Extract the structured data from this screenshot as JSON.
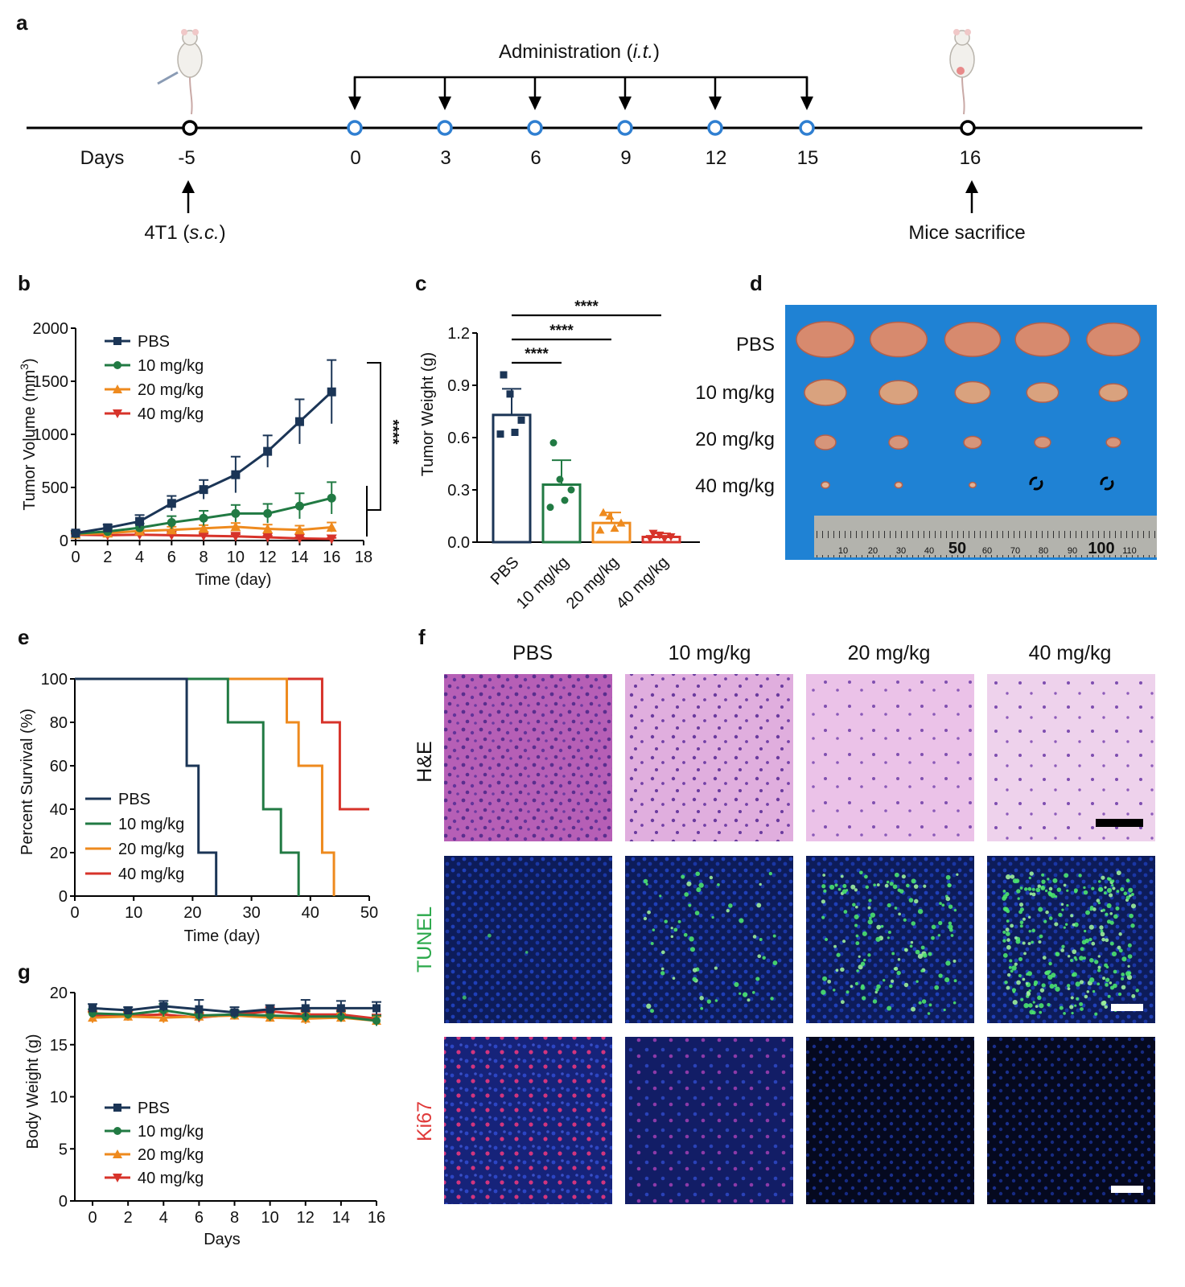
{
  "colors": {
    "PBS": "#1b3556",
    "10 mg/kg": "#217a43",
    "20 mg/kg": "#ee8a1e",
    "40 mg/kg": "#d7332a",
    "tunel": "#2aa84a",
    "ki67": "#e03a3a"
  },
  "panels": {
    "a": "a",
    "b": "b",
    "c": "c",
    "d": "d",
    "e": "e",
    "f": "f",
    "g": "g"
  },
  "timeline": {
    "days_label": "Days",
    "administration_label": "Administration (",
    "administration_italic": "i.t.",
    "administration_close": ")",
    "start_day": "-5",
    "admin_days": [
      "0",
      "3",
      "6",
      "9",
      "12",
      "15"
    ],
    "end_day": "16",
    "inoculation_label": "4T1 (",
    "inoculation_italic": "s.c.",
    "inoculation_close": ")",
    "sacrifice_label": "Mice sacrifice"
  },
  "photo": {
    "rows": [
      "PBS",
      "10 mg/kg",
      "20 mg/kg",
      "40 mg/kg"
    ],
    "ruler_labels": [
      "10",
      "20",
      "30",
      "40",
      "50",
      "60",
      "70",
      "80",
      "90",
      "100",
      "110"
    ]
  },
  "histology": {
    "columns": [
      "PBS",
      "10 mg/kg",
      "20 mg/kg",
      "40 mg/kg"
    ],
    "rows": [
      "H&E",
      "TUNEL",
      "Ki67"
    ]
  },
  "chart_data": [
    {
      "id": "b",
      "type": "line",
      "xlabel": "Time (day)",
      "ylabel": "Tumor Volume (mm",
      "ylabel_sup": "3",
      "ylabel_close": ")",
      "xlim": [
        0,
        18
      ],
      "ylim": [
        0,
        2000
      ],
      "xticks": [
        0,
        2,
        4,
        6,
        8,
        10,
        12,
        14,
        16,
        18
      ],
      "yticks": [
        0,
        500,
        1000,
        1500,
        2000
      ],
      "x": [
        0,
        2,
        4,
        6,
        8,
        10,
        12,
        14,
        16
      ],
      "series": [
        {
          "name": "PBS",
          "marker": "square",
          "values": [
            70,
            120,
            180,
            350,
            480,
            620,
            840,
            1120,
            1400
          ],
          "err": [
            20,
            30,
            60,
            70,
            90,
            170,
            150,
            210,
            300
          ]
        },
        {
          "name": "10 mg/kg",
          "marker": "circle",
          "values": [
            65,
            85,
            120,
            170,
            210,
            255,
            255,
            325,
            400
          ],
          "err": [
            15,
            25,
            40,
            60,
            70,
            80,
            90,
            120,
            150
          ]
        },
        {
          "name": "20 mg/kg",
          "marker": "triangle-up",
          "values": [
            60,
            70,
            90,
            100,
            115,
            130,
            110,
            100,
            125
          ],
          "err": [
            15,
            20,
            25,
            30,
            30,
            35,
            40,
            40,
            45
          ]
        },
        {
          "name": "40 mg/kg",
          "marker": "triangle-down",
          "values": [
            55,
            50,
            55,
            50,
            45,
            40,
            30,
            20,
            15
          ],
          "err": [
            10,
            15,
            15,
            20,
            20,
            20,
            15,
            10,
            10
          ]
        }
      ],
      "significance": "****",
      "legend": "top-left"
    },
    {
      "id": "c",
      "type": "bar",
      "ylabel": "Tumor Weight (g)",
      "ylim": [
        0,
        1.2
      ],
      "yticks": [
        "0.0",
        "0.3",
        "0.6",
        "0.9",
        "1.2"
      ],
      "categories": [
        "PBS",
        "10 mg/kg",
        "20 mg/kg",
        "40 mg/kg"
      ],
      "values": [
        0.73,
        0.33,
        0.11,
        0.03
      ],
      "err": [
        0.15,
        0.14,
        0.06,
        0.02
      ],
      "points": [
        [
          0.96,
          0.85,
          0.7,
          0.63,
          0.62
        ],
        [
          0.57,
          0.36,
          0.3,
          0.24,
          0.2
        ],
        [
          0.17,
          0.15,
          0.11,
          0.08,
          0.07
        ],
        [
          0.05,
          0.04,
          0.03,
          0.02,
          0.02
        ]
      ],
      "comparisons": [
        {
          "from": 0,
          "to": 1,
          "label": "****"
        },
        {
          "from": 0,
          "to": 2,
          "label": "****"
        },
        {
          "from": 0,
          "to": 3,
          "label": "****"
        }
      ]
    },
    {
      "id": "e",
      "type": "line",
      "xlabel": "Time (day)",
      "ylabel": "Percent Survival (%)",
      "xlim": [
        0,
        50
      ],
      "ylim": [
        0,
        100
      ],
      "xticks": [
        0,
        10,
        20,
        30,
        40,
        50
      ],
      "yticks": [
        0,
        20,
        40,
        60,
        80,
        100
      ],
      "series": [
        {
          "name": "PBS",
          "steps": [
            [
              0,
              100
            ],
            [
              19,
              100
            ],
            [
              19,
              60
            ],
            [
              21,
              60
            ],
            [
              21,
              20
            ],
            [
              24,
              20
            ],
            [
              24,
              0
            ]
          ]
        },
        {
          "name": "10 mg/kg",
          "steps": [
            [
              0,
              100
            ],
            [
              26,
              100
            ],
            [
              26,
              80
            ],
            [
              32,
              80
            ],
            [
              32,
              40
            ],
            [
              35,
              40
            ],
            [
              35,
              20
            ],
            [
              38,
              20
            ],
            [
              38,
              0
            ]
          ]
        },
        {
          "name": "20 mg/kg",
          "steps": [
            [
              0,
              100
            ],
            [
              36,
              100
            ],
            [
              36,
              80
            ],
            [
              38,
              80
            ],
            [
              38,
              60
            ],
            [
              42,
              60
            ],
            [
              42,
              20
            ],
            [
              44,
              20
            ],
            [
              44,
              0
            ]
          ]
        },
        {
          "name": "40 mg/kg",
          "steps": [
            [
              0,
              100
            ],
            [
              42,
              100
            ],
            [
              42,
              80
            ],
            [
              45,
              80
            ],
            [
              45,
              40
            ],
            [
              50,
              40
            ]
          ]
        }
      ],
      "legend": "bottom-left"
    },
    {
      "id": "g",
      "type": "line",
      "xlabel": "Days",
      "ylabel": "Body Weight (g)",
      "xlim": [
        -1,
        16
      ],
      "ylim": [
        0,
        20
      ],
      "xticks": [
        0,
        2,
        4,
        6,
        8,
        10,
        12,
        14,
        16
      ],
      "yticks": [
        0,
        5,
        10,
        15,
        20
      ],
      "x": [
        0,
        2,
        4,
        6,
        8,
        10,
        12,
        14,
        16
      ],
      "series": [
        {
          "name": "PBS",
          "marker": "square",
          "values": [
            18.5,
            18.3,
            18.7,
            18.4,
            18.1,
            18.4,
            18.5,
            18.5,
            18.5
          ],
          "err": [
            0.4,
            0.3,
            0.5,
            0.9,
            0.5,
            0.4,
            0.8,
            0.7,
            0.6
          ]
        },
        {
          "name": "10 mg/kg",
          "marker": "circle",
          "values": [
            18.0,
            17.9,
            18.3,
            17.8,
            17.9,
            17.8,
            17.7,
            17.7,
            17.3
          ],
          "err": [
            0.4,
            0.4,
            0.6,
            0.5,
            0.4,
            0.5,
            0.5,
            0.5,
            0.5
          ]
        },
        {
          "name": "20 mg/kg",
          "marker": "triangle-up",
          "values": [
            17.6,
            17.7,
            17.6,
            17.7,
            17.8,
            17.6,
            17.5,
            17.6,
            17.3
          ],
          "err": [
            0.5,
            0.4,
            0.5,
            0.4,
            0.4,
            0.4,
            0.5,
            0.4,
            0.4
          ]
        },
        {
          "name": "40 mg/kg",
          "marker": "triangle-down",
          "values": [
            17.8,
            17.8,
            17.9,
            17.6,
            17.9,
            18.2,
            17.9,
            17.9,
            17.5
          ],
          "err": [
            0.4,
            0.4,
            0.4,
            0.4,
            0.4,
            0.4,
            0.4,
            0.4,
            0.4
          ]
        }
      ],
      "legend": "bottom-left"
    }
  ]
}
